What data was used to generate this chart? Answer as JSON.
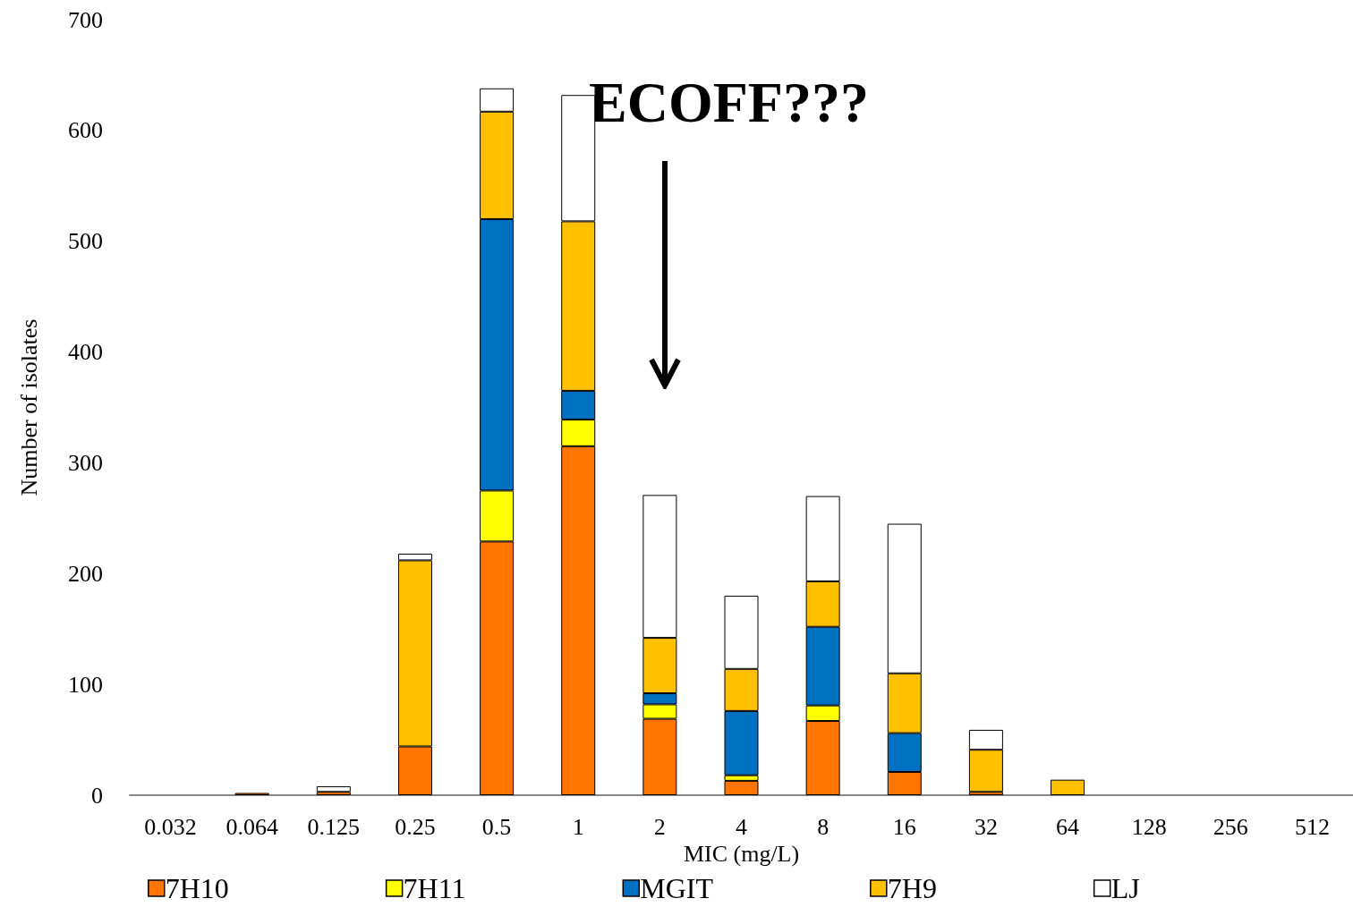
{
  "chart_data": {
    "type": "bar",
    "stacked": true,
    "xlabel": "MIC (mg/L)",
    "ylabel": "Number of isolates",
    "categories": [
      "0.032",
      "0.064",
      "0.125",
      "0.25",
      "0.5",
      "1",
      "2",
      "4",
      "8",
      "16",
      "32",
      "64",
      "128",
      "256",
      "512"
    ],
    "series": [
      {
        "name": "7H10",
        "color": "#ff7500",
        "values": [
          0,
          2,
          3,
          44,
          229,
          315,
          69,
          13,
          67,
          21,
          3,
          0,
          0,
          0,
          0
        ]
      },
      {
        "name": "7H11",
        "color": "#ffff00",
        "values": [
          0,
          0,
          0,
          0,
          46,
          24,
          13,
          5,
          14,
          0,
          0,
          0,
          0,
          0,
          0
        ]
      },
      {
        "name": "MGIT",
        "color": "#0070c0",
        "values": [
          0,
          0,
          0,
          0,
          245,
          26,
          10,
          58,
          71,
          35,
          0,
          0,
          0,
          0,
          0
        ]
      },
      {
        "name": "7H9",
        "color": "#ffc000",
        "values": [
          0,
          0,
          0,
          168,
          97,
          153,
          50,
          38,
          41,
          54,
          38,
          14,
          0,
          0,
          0
        ]
      },
      {
        "name": "LJ",
        "color": "#ffffff",
        "values": [
          0,
          0,
          5,
          6,
          21,
          114,
          129,
          66,
          77,
          135,
          18,
          0,
          0,
          0,
          0
        ]
      }
    ],
    "ylim": [
      0,
      700
    ],
    "yticks": [
      0,
      100,
      200,
      300,
      400,
      500,
      600,
      700
    ],
    "grid": false,
    "legend": "bottom",
    "annotations": [
      "ECOFF???"
    ]
  }
}
